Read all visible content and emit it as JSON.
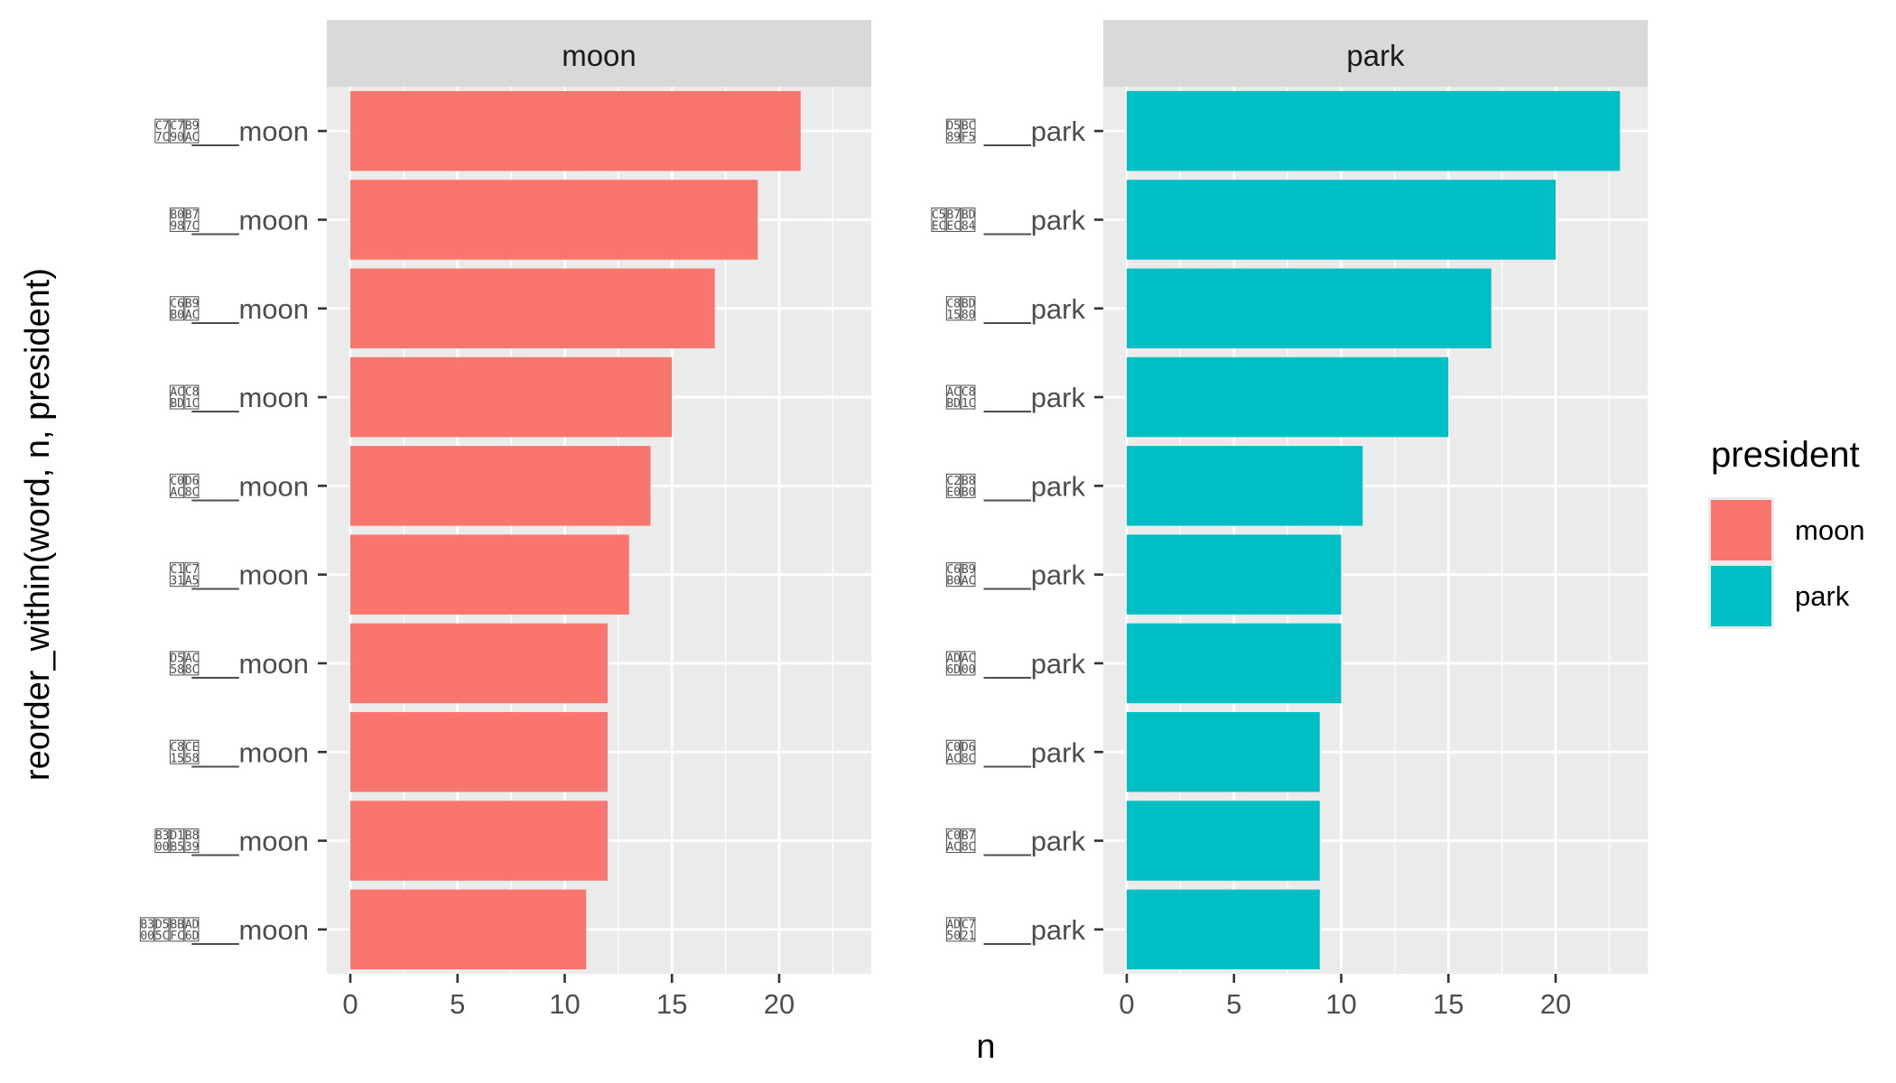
{
  "chart_data": {
    "type": "bar",
    "orientation": "horizontal",
    "xlabel": "n",
    "ylabel": "reorder_within(word, n, president)",
    "xlim": [
      0,
      24
    ],
    "x_ticks": [
      0,
      5,
      10,
      15,
      20
    ],
    "grid": true,
    "legend": {
      "title": "president",
      "placement": "right",
      "entries": [
        {
          "label": "moon",
          "color": "#F8766D"
        },
        {
          "label": "park",
          "color": "#00BFC4"
        }
      ]
    },
    "panels": [
      {
        "strip": "moon",
        "color": "#F8766D",
        "categories": [
          {
            "hex": "C7C7B9 7C90AC",
            "label": "___moon",
            "value": 21
          },
          {
            "hex": "B0B7 987C",
            "label": "___moon",
            "value": 19
          },
          {
            "hex": "C6B9 B0AC",
            "label": "___moon",
            "value": 17
          },
          {
            "hex": "ACC8 BD1C",
            "label": "___moon",
            "value": 15
          },
          {
            "hex": "C0D6 AC8C",
            "label": "___moon",
            "value": 14
          },
          {
            "hex": "C1C7 31A5",
            "label": "___moon",
            "value": 13
          },
          {
            "hex": "D5AC 588C",
            "label": "___moon",
            "value": 12
          },
          {
            "hex": "C8CE 1558",
            "label": "___moon",
            "value": 12
          },
          {
            "hex": "B3D1B8 00B539",
            "label": "___moon",
            "value": 12
          },
          {
            "hex": "B3D5BBAD 005CFC6D",
            "label": "___moon",
            "value": 11
          }
        ]
      },
      {
        "strip": "park",
        "color": "#00BFC4",
        "categories": [
          {
            "hex": "D5BC 89F5",
            "label": "___park",
            "value": 23
          },
          {
            "hex": "C5B7BD ECEC84",
            "label": "___park",
            "value": 20
          },
          {
            "hex": "C8BD 1580",
            "label": "___park",
            "value": 17
          },
          {
            "hex": "ACC8 BD1C",
            "label": "___park",
            "value": 15
          },
          {
            "hex": "C2B8 E0B0",
            "label": "___park",
            "value": 11
          },
          {
            "hex": "C6B9 B0AC",
            "label": "___park",
            "value": 10
          },
          {
            "hex": "ADAC 6D00",
            "label": "___park",
            "value": 10
          },
          {
            "hex": "C0D6 AC8C",
            "label": "___park",
            "value": 9
          },
          {
            "hex": "C0B7 AC8C",
            "label": "___park",
            "value": 9
          },
          {
            "hex": "ADC7 5021",
            "label": "___park",
            "value": 9
          }
        ]
      }
    ]
  }
}
